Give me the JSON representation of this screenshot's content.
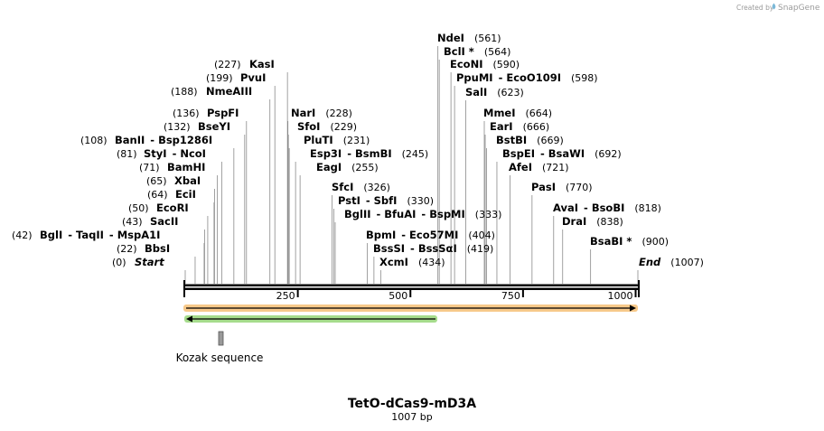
{
  "header": {
    "credit_prefix": "Created by",
    "credit_brand": "SnapGene",
    "brand_icon": "snapgene-logo-icon"
  },
  "map": {
    "title": "TetO-dCas9-mD3A",
    "subtitle": "1007 bp",
    "length": 1007,
    "ruler_ticks": [
      {
        "pos": 250,
        "label": "250"
      },
      {
        "pos": 500,
        "label": "500"
      },
      {
        "pos": 750,
        "label": "750"
      },
      {
        "pos": 1000,
        "label": "1000"
      }
    ],
    "sites": [
      {
        "parts": [
          "Start"
        ],
        "pos_text": "(0)",
        "pos": 0,
        "is_end": true
      },
      {
        "parts": [
          "BbsI"
        ],
        "pos_text": "(22)",
        "pos": 22
      },
      {
        "parts": [
          "BglI",
          "TaqII",
          "MspA1I"
        ],
        "pos_text": "(42)",
        "pos": 42
      },
      {
        "parts": [
          "SacII"
        ],
        "pos_text": "(43)",
        "pos": 43
      },
      {
        "parts": [
          "EcoRI"
        ],
        "pos_text": "(50)",
        "pos": 50
      },
      {
        "parts": [
          "EciI"
        ],
        "pos_text": "(64)",
        "pos": 64
      },
      {
        "parts": [
          "XbaI"
        ],
        "pos_text": "(65)",
        "pos": 65
      },
      {
        "parts": [
          "BamHI"
        ],
        "pos_text": "(71)",
        "pos": 71
      },
      {
        "parts": [
          "StyI",
          "NcoI"
        ],
        "pos_text": "(81)",
        "pos": 81
      },
      {
        "parts": [
          "BanII",
          "Bsp1286I"
        ],
        "pos_text": "(108)",
        "pos": 108
      },
      {
        "parts": [
          "BseYI"
        ],
        "pos_text": "(132)",
        "pos": 132
      },
      {
        "parts": [
          "PspFI"
        ],
        "pos_text": "(136)",
        "pos": 136
      },
      {
        "parts": [
          "NmeAIII"
        ],
        "pos_text": "(188)",
        "pos": 188
      },
      {
        "parts": [
          "PvuI"
        ],
        "pos_text": "(199)",
        "pos": 199
      },
      {
        "parts": [
          "KasI"
        ],
        "pos_text": "(227)",
        "pos": 227
      },
      {
        "parts": [
          "NarI"
        ],
        "pos_text": "(228)",
        "pos": 228
      },
      {
        "parts": [
          "SfoI"
        ],
        "pos_text": "(229)",
        "pos": 229
      },
      {
        "parts": [
          "PluTI"
        ],
        "pos_text": "(231)",
        "pos": 231
      },
      {
        "parts": [
          "Esp3I",
          "BsmBI"
        ],
        "pos_text": "(245)",
        "pos": 245
      },
      {
        "parts": [
          "EagI"
        ],
        "pos_text": "(255)",
        "pos": 255
      },
      {
        "parts": [
          "SfcI"
        ],
        "pos_text": "(326)",
        "pos": 326
      },
      {
        "parts": [
          "PstI",
          "SbfI"
        ],
        "pos_text": "(330)",
        "pos": 330
      },
      {
        "parts": [
          "BglII",
          "BfuAI",
          "BspMI"
        ],
        "pos_text": "(333)",
        "pos": 333
      },
      {
        "parts": [
          "BpmI",
          "Eco57MI"
        ],
        "pos_text": "(404)",
        "pos": 404
      },
      {
        "parts": [
          "BssSI",
          "BssSαI"
        ],
        "pos_text": "(419)",
        "pos": 419
      },
      {
        "parts": [
          "XcmI"
        ],
        "pos_text": "(434)",
        "pos": 434
      },
      {
        "parts": [
          "NdeI"
        ],
        "pos_text": "(561)",
        "pos": 561
      },
      {
        "parts": [
          "BclI *"
        ],
        "pos_text": "(564)",
        "pos": 564
      },
      {
        "parts": [
          "EcoNI"
        ],
        "pos_text": "(590)",
        "pos": 590
      },
      {
        "parts": [
          "PpuMI",
          "EcoO109I"
        ],
        "pos_text": "(598)",
        "pos": 598
      },
      {
        "parts": [
          "SalI"
        ],
        "pos_text": "(623)",
        "pos": 623
      },
      {
        "parts": [
          "MmeI"
        ],
        "pos_text": "(664)",
        "pos": 664
      },
      {
        "parts": [
          "EarI"
        ],
        "pos_text": "(666)",
        "pos": 666
      },
      {
        "parts": [
          "BstBI"
        ],
        "pos_text": "(669)",
        "pos": 669
      },
      {
        "parts": [
          "BspEI",
          "BsaWI"
        ],
        "pos_text": "(692)",
        "pos": 692
      },
      {
        "parts": [
          "AfeI"
        ],
        "pos_text": "(721)",
        "pos": 721
      },
      {
        "parts": [
          "PasI"
        ],
        "pos_text": "(770)",
        "pos": 770
      },
      {
        "parts": [
          "AvaI",
          "BsoBI"
        ],
        "pos_text": "(818)",
        "pos": 818
      },
      {
        "parts": [
          "DraI"
        ],
        "pos_text": "(838)",
        "pos": 838
      },
      {
        "parts": [
          "BsaBI *"
        ],
        "pos_text": "(900)",
        "pos": 900
      },
      {
        "parts": [
          "End"
        ],
        "pos_text": "(1007)",
        "pos": 1007,
        "is_end": true
      }
    ],
    "features": [
      {
        "name": "orange-forward-feature",
        "from": 1,
        "to": 1007,
        "direction": "forward",
        "color": "#f5a623"
      },
      {
        "name": "green-reverse-feature",
        "from": 1,
        "to": 577,
        "direction": "reverse",
        "color": "#5bb82e"
      },
      {
        "name": "kozak-sequence",
        "label": "Kozak sequence",
        "from": 77,
        "to": 86,
        "color": "#999999"
      }
    ],
    "colors": {
      "backbone": "#000000",
      "site_line": "#8a8a8a",
      "credit": "#9a9a9a"
    }
  }
}
